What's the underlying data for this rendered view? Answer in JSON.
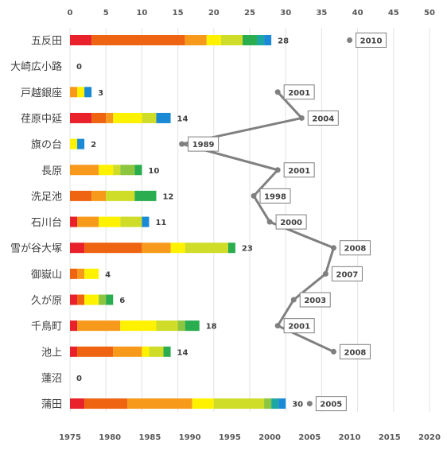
{
  "chart_data": {
    "type": "bar",
    "orientation": "horizontal",
    "stacked": true,
    "grid": true,
    "top_axis": {
      "min": 0,
      "max": 50,
      "step": 5,
      "ticks": [
        "0",
        "5",
        "10",
        "15",
        "20",
        "25",
        "30",
        "35",
        "40",
        "45",
        "50"
      ]
    },
    "bottom_axis": {
      "min": 1975,
      "max": 2020,
      "step": 5,
      "ticks": [
        "1975",
        "1980",
        "1985",
        "1990",
        "1995",
        "2000",
        "2005",
        "2010",
        "2015",
        "2020"
      ]
    },
    "segment_colors": [
      "#e8212a",
      "#ee6411",
      "#f79a1b",
      "#fff200",
      "#cfdc28",
      "#8cc63f",
      "#2aad4f",
      "#1da7a3",
      "#1a8ad6"
    ],
    "categories": [
      "五反田",
      "大崎広小路",
      "戸越銀座",
      "荏原中延",
      "旗の台",
      "長原",
      "洗足池",
      "石川台",
      "雪が谷大塚",
      "御嶽山",
      "久が原",
      "千鳥町",
      "池上",
      "蓮沼",
      "蒲田"
    ],
    "totals": [
      "28",
      "0",
      "3",
      "14",
      "2",
      "10",
      "12",
      "11",
      "23",
      "4",
      "6",
      "18",
      "14",
      "0",
      "30"
    ],
    "stacks": [
      [
        3,
        13,
        3,
        2,
        3,
        0,
        2,
        1,
        1
      ],
      [
        0,
        0,
        0,
        0,
        0,
        0,
        0,
        0,
        0
      ],
      [
        0,
        0,
        1,
        1,
        0,
        0,
        0,
        0,
        1
      ],
      [
        3,
        2,
        1,
        4,
        2,
        0,
        0,
        0,
        2
      ],
      [
        0,
        0,
        0,
        1,
        0,
        0,
        0,
        0,
        1
      ],
      [
        0,
        0,
        4,
        2,
        1,
        2,
        1,
        0,
        0
      ],
      [
        0,
        3,
        2,
        0,
        4,
        0,
        3,
        0,
        0
      ],
      [
        1,
        0,
        3,
        3,
        3,
        0,
        0,
        0,
        1
      ],
      [
        2,
        8,
        4,
        2,
        6,
        0,
        1,
        0,
        0
      ],
      [
        0,
        1,
        1,
        2,
        0,
        0,
        0,
        0,
        0
      ],
      [
        1,
        1,
        0,
        2,
        0,
        1,
        1,
        0,
        0
      ],
      [
        1,
        0,
        6,
        5,
        3,
        1,
        2,
        0,
        0
      ],
      [
        1,
        5,
        4,
        1,
        2,
        0,
        1,
        0,
        0
      ],
      [
        0,
        0,
        0,
        0,
        0,
        0,
        0,
        0,
        0
      ],
      [
        2,
        6,
        9,
        3,
        7,
        1,
        0,
        1,
        1
      ]
    ],
    "line_series": {
      "values": [
        2010,
        null,
        2001,
        2004,
        1989,
        2001,
        1998,
        2000,
        2008,
        2007,
        2003,
        2001,
        2008,
        null,
        2005
      ],
      "labels": [
        "2010",
        "",
        "2001",
        "2004",
        "1989",
        "2001",
        "1998",
        "2000",
        "2008",
        "2007",
        "2003",
        "2001",
        "2008",
        "",
        "2005"
      ],
      "color": "#808080"
    }
  }
}
